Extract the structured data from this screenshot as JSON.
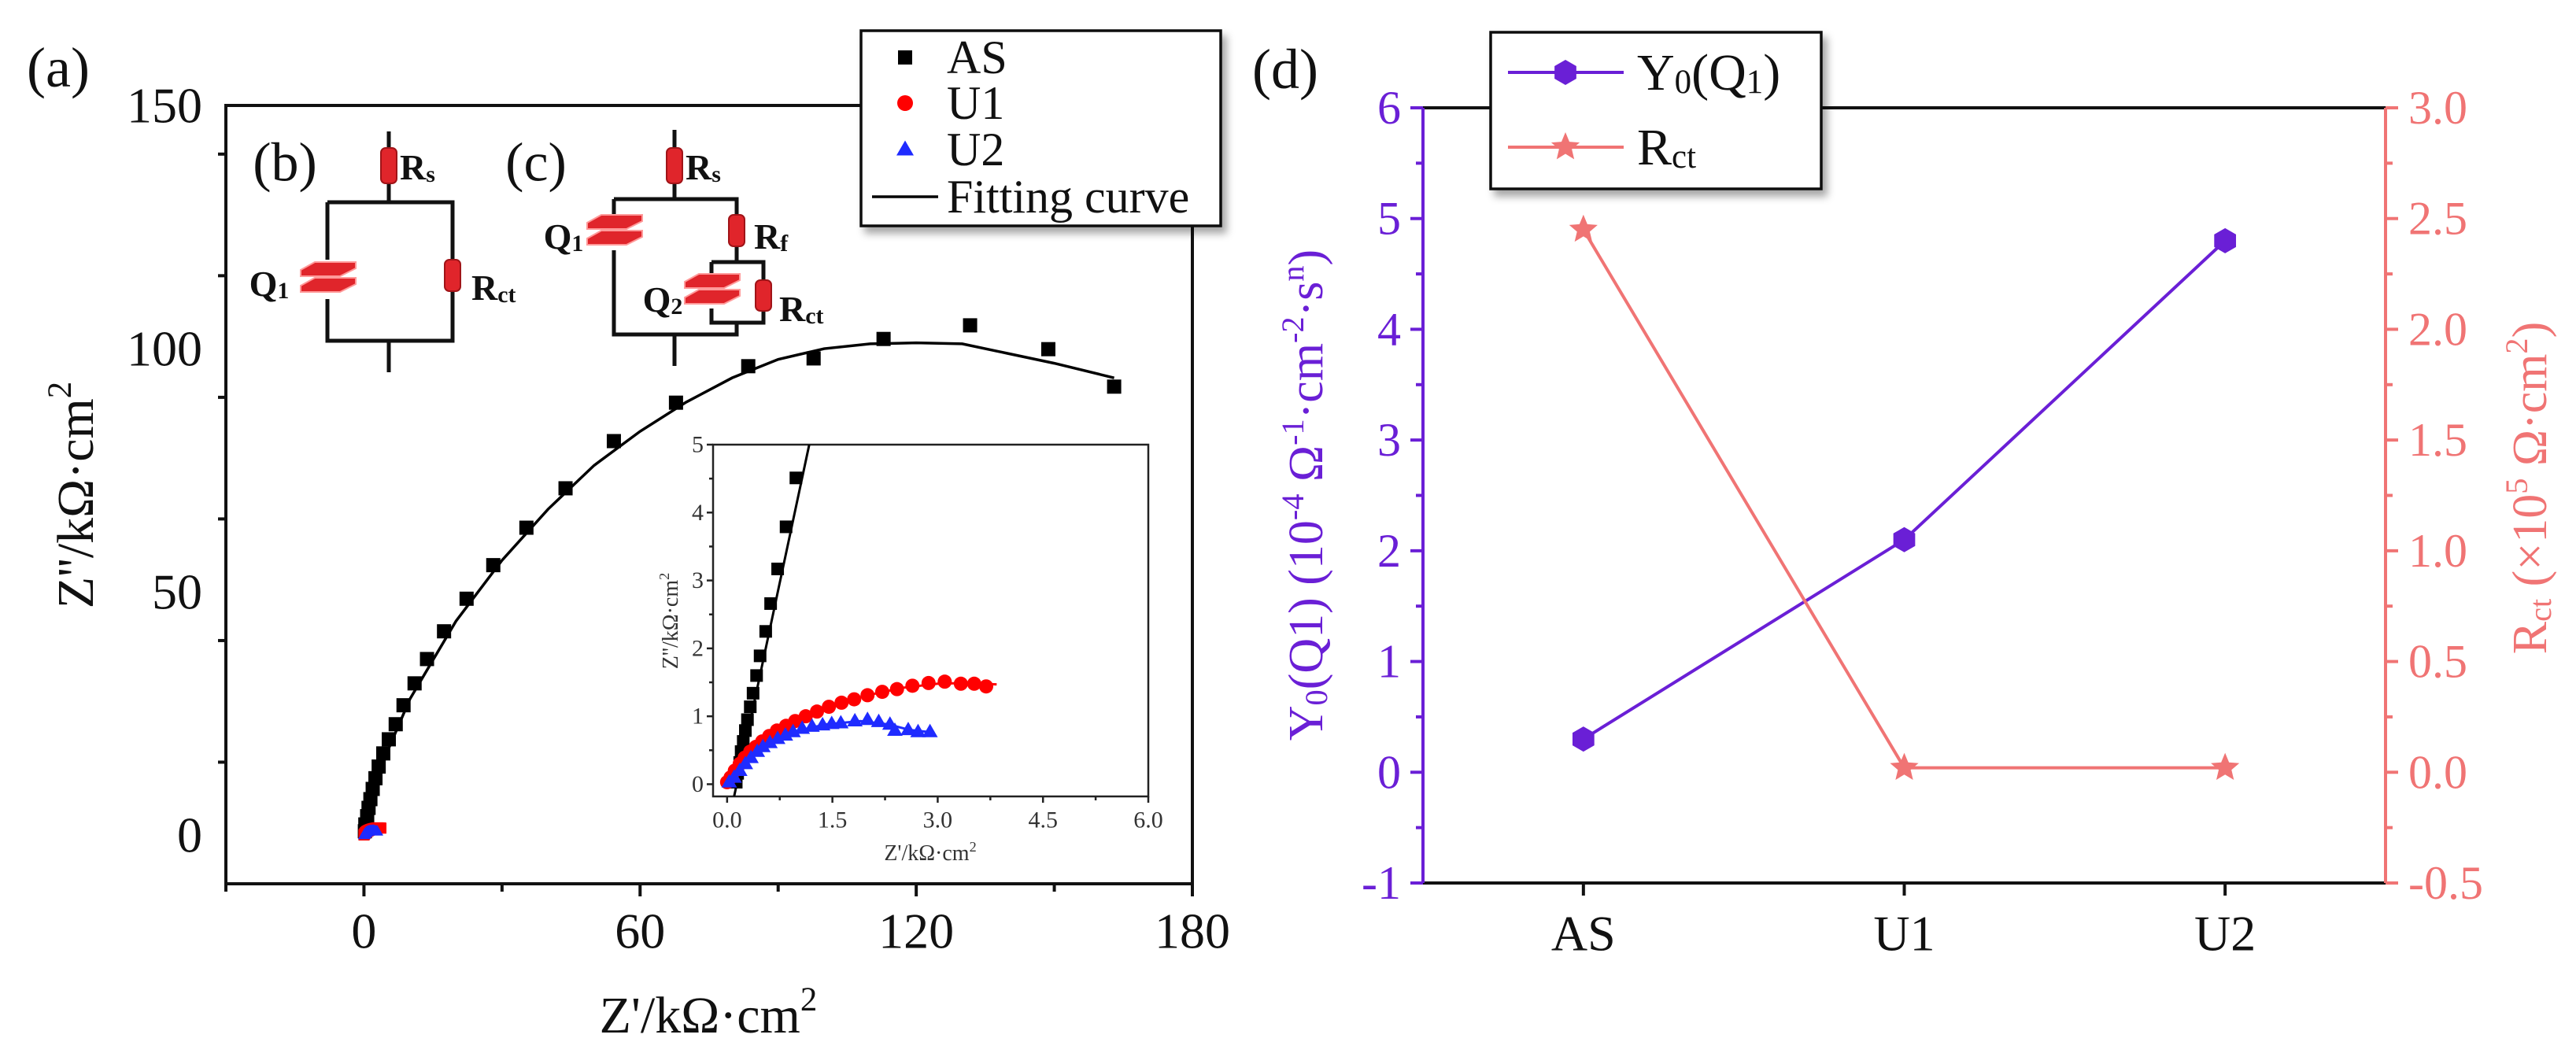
{
  "colors": {
    "as": "#000000",
    "u1": "#ff0000",
    "u2": "#1f2bff",
    "fit": "#000000",
    "y0": "#6a1fd6",
    "rct": "#f07474",
    "component": "#e0252b"
  },
  "panel_labels": {
    "a": "(a)",
    "b": "(b)",
    "c": "(c)",
    "d": "(d)"
  },
  "circuits": {
    "b": {
      "rs": [
        {
          "t": "R"
        },
        {
          "t": "s",
          "s": "sub"
        }
      ],
      "q1": [
        {
          "t": "Q"
        },
        {
          "t": "1",
          "s": "sub"
        }
      ],
      "rct": [
        {
          "t": "R"
        },
        {
          "t": "ct",
          "s": "sub"
        }
      ]
    },
    "c": {
      "rs": [
        {
          "t": "R"
        },
        {
          "t": "s",
          "s": "sub"
        }
      ],
      "q1": [
        {
          "t": "Q"
        },
        {
          "t": "1",
          "s": "sub"
        }
      ],
      "rf": [
        {
          "t": "R"
        },
        {
          "t": "f",
          "s": "sub"
        }
      ],
      "q2": [
        {
          "t": "Q"
        },
        {
          "t": "2",
          "s": "sub"
        }
      ],
      "rct": [
        {
          "t": "R"
        },
        {
          "t": "ct",
          "s": "sub"
        }
      ]
    }
  },
  "chart_data": [
    {
      "id": "nyquist-main",
      "type": "scatter",
      "title": "",
      "xlabel": [
        {
          "t": "Z'/kΩ·cm"
        },
        {
          "t": "2",
          "s": "sup"
        }
      ],
      "ylabel": [
        {
          "t": "Z''/kΩ·cm"
        },
        {
          "t": "2",
          "s": "sup"
        }
      ],
      "xlim": [
        -30,
        180
      ],
      "ylim": [
        -10,
        150
      ],
      "xticks": [
        "0",
        "60",
        "120",
        "180"
      ],
      "xtick_values": [
        0,
        60,
        120,
        180
      ],
      "yticks": [
        "0",
        "50",
        "100",
        "150"
      ],
      "ytick_values": [
        0,
        50,
        100,
        150
      ],
      "grid": false,
      "legend": {
        "placement": "top-right",
        "entries": [
          "AS",
          "U1",
          "U2",
          "Fitting curve"
        ]
      },
      "series": [
        {
          "name": "AS",
          "marker": "square",
          "points": [
            [
              163,
              92.2
            ],
            [
              148.7,
              99.9
            ],
            [
              131.7,
              104.8
            ],
            [
              112.9,
              102
            ],
            [
              97.7,
              98
            ],
            [
              83.5,
              96.4
            ],
            [
              67.8,
              88.9
            ],
            [
              54.3,
              81
            ],
            [
              43.8,
              71.3
            ],
            [
              35.3,
              63.2
            ],
            [
              28.1,
              55.5
            ],
            [
              22.3,
              48.6
            ],
            [
              17.4,
              41.9
            ],
            [
              13.7,
              36.2
            ],
            [
              11,
              31.2
            ],
            [
              8.6,
              26.7
            ],
            [
              6.9,
              22.8
            ],
            [
              5.4,
              19.7
            ],
            [
              4.2,
              16.8
            ],
            [
              3.2,
              14.1
            ],
            [
              2.5,
              11.7
            ],
            [
              1.9,
              9.5
            ],
            [
              1.4,
              7.4
            ],
            [
              1.0,
              5.6
            ],
            [
              0.7,
              3.9
            ],
            [
              0.3,
              2.2
            ],
            [
              0.2,
              0.8
            ]
          ]
        },
        {
          "name": "U1",
          "marker": "circle",
          "points": "same as inset"
        },
        {
          "name": "U2",
          "marker": "triangle",
          "points": "same as inset"
        }
      ],
      "fit": {
        "name": "Fitting curve",
        "points": [
          [
            0,
            0
          ],
          [
            1,
            5
          ],
          [
            2.5,
            10
          ],
          [
            5,
            17
          ],
          [
            10,
            28
          ],
          [
            15,
            36
          ],
          [
            20,
            44
          ],
          [
            30,
            56.5
          ],
          [
            40,
            67
          ],
          [
            50,
            76
          ],
          [
            60,
            83
          ],
          [
            70,
            89
          ],
          [
            80,
            94
          ],
          [
            90,
            97.8
          ],
          [
            100,
            100
          ],
          [
            110,
            101
          ],
          [
            120,
            101.2
          ],
          [
            130,
            101
          ],
          [
            140,
            99
          ],
          [
            150,
            97
          ],
          [
            163,
            94
          ]
        ]
      }
    },
    {
      "id": "nyquist-inset",
      "type": "scatter",
      "xlabel": [
        {
          "t": "Z'/kΩ·cm"
        },
        {
          "t": "2",
          "s": "sup"
        }
      ],
      "ylabel": [
        {
          "t": "Z''/kΩ·cm"
        },
        {
          "t": "2",
          "s": "sup"
        }
      ],
      "xlim": [
        -0.2,
        6.0
      ],
      "ylim": [
        -0.18,
        5
      ],
      "xticks": [
        "0.0",
        "1.5",
        "3.0",
        "4.5",
        "6.0"
      ],
      "xtick_values": [
        0,
        1.5,
        3,
        4.5,
        6
      ],
      "yticks": [
        "0",
        "1",
        "2",
        "3",
        "4",
        "5"
      ],
      "ytick_values": [
        0,
        1,
        2,
        3,
        4,
        5
      ],
      "series": [
        {
          "name": "AS",
          "marker": "square",
          "points": [
            [
              0.98,
              4.51
            ],
            [
              0.84,
              3.79
            ],
            [
              0.72,
              3.17
            ],
            [
              0.62,
              2.66
            ],
            [
              0.55,
              2.25
            ],
            [
              0.47,
              1.89
            ],
            [
              0.42,
              1.6
            ],
            [
              0.37,
              1.34
            ],
            [
              0.33,
              1.14
            ],
            [
              0.29,
              0.95
            ],
            [
              0.26,
              0.79
            ],
            [
              0.23,
              0.63
            ],
            [
              0.2,
              0.48
            ],
            [
              0.18,
              0.32
            ],
            [
              0.15,
              0.16
            ],
            [
              0.13,
              0.03
            ]
          ],
          "fit": [
            [
              0.1,
              -0.18
            ],
            [
              1.17,
              5.0
            ]
          ]
        },
        {
          "name": "U1",
          "marker": "circle",
          "points": [
            [
              3.69,
              1.44
            ],
            [
              3.52,
              1.48
            ],
            [
              3.33,
              1.48
            ],
            [
              3.1,
              1.51
            ],
            [
              2.87,
              1.49
            ],
            [
              2.64,
              1.45
            ],
            [
              2.42,
              1.4
            ],
            [
              2.21,
              1.36
            ],
            [
              2.0,
              1.31
            ],
            [
              1.81,
              1.25
            ],
            [
              1.63,
              1.2
            ],
            [
              1.45,
              1.14
            ],
            [
              1.28,
              1.07
            ],
            [
              1.12,
              1.0
            ],
            [
              0.97,
              0.93
            ],
            [
              0.84,
              0.86
            ],
            [
              0.71,
              0.79
            ],
            [
              0.6,
              0.71
            ],
            [
              0.5,
              0.63
            ],
            [
              0.41,
              0.55
            ],
            [
              0.33,
              0.48
            ],
            [
              0.25,
              0.39
            ],
            [
              0.18,
              0.3
            ],
            [
              0.11,
              0.2
            ],
            [
              0.05,
              0.1
            ],
            [
              0.0,
              0.03
            ]
          ],
          "fit": [
            [
              -0.02,
              0
            ],
            [
              0.1,
              0.2
            ],
            [
              0.3,
              0.45
            ],
            [
              0.6,
              0.71
            ],
            [
              1.0,
              0.95
            ],
            [
              1.5,
              1.16
            ],
            [
              2.0,
              1.31
            ],
            [
              2.5,
              1.42
            ],
            [
              3.0,
              1.48
            ],
            [
              3.4,
              1.49
            ],
            [
              3.84,
              1.47
            ]
          ]
        },
        {
          "name": "U2",
          "marker": "triangle",
          "points": [
            [
              2.89,
              0.77
            ],
            [
              2.72,
              0.77
            ],
            [
              2.58,
              0.8
            ],
            [
              2.39,
              0.79
            ],
            [
              2.32,
              0.88
            ],
            [
              2.16,
              0.92
            ],
            [
              2.0,
              0.95
            ],
            [
              1.82,
              0.93
            ],
            [
              1.62,
              0.9
            ],
            [
              1.49,
              0.89
            ],
            [
              1.36,
              0.87
            ],
            [
              1.21,
              0.85
            ],
            [
              1.07,
              0.82
            ],
            [
              0.94,
              0.77
            ],
            [
              0.83,
              0.72
            ],
            [
              0.72,
              0.67
            ],
            [
              0.61,
              0.61
            ],
            [
              0.51,
              0.55
            ],
            [
              0.43,
              0.48
            ],
            [
              0.34,
              0.39
            ],
            [
              0.26,
              0.3
            ],
            [
              0.18,
              0.2
            ],
            [
              0.1,
              0.1
            ],
            [
              0.03,
              0.03
            ]
          ],
          "fit": [
            [
              0,
              0
            ],
            [
              0.2,
              0.22
            ],
            [
              0.5,
              0.54
            ],
            [
              0.9,
              0.76
            ],
            [
              1.4,
              0.88
            ],
            [
              1.9,
              0.93
            ],
            [
              2.3,
              0.88
            ],
            [
              2.6,
              0.8
            ],
            [
              2.95,
              0.76
            ]
          ]
        }
      ]
    },
    {
      "id": "parameters",
      "type": "line",
      "categories": [
        "AS",
        "U1",
        "U2"
      ],
      "ylabel_left": [
        {
          "t": "Y"
        },
        {
          "t": "0",
          "s": "sub"
        },
        {
          "t": "(Q1) (10"
        },
        {
          "t": "-4",
          "s": "sup"
        },
        {
          "t": " Ω"
        },
        {
          "t": "-1",
          "s": "sup"
        },
        {
          "t": "·cm"
        },
        {
          "t": "-2",
          "s": "sup"
        },
        {
          "t": "·s"
        },
        {
          "t": "n",
          "s": "sup"
        },
        {
          "t": ")"
        }
      ],
      "ylabel_right": [
        {
          "t": "R"
        },
        {
          "t": "ct",
          "s": "sub"
        },
        {
          "t": " (×10"
        },
        {
          "t": "5",
          "s": "sup"
        },
        {
          "t": " Ω·cm"
        },
        {
          "t": "2",
          "s": "sup"
        },
        {
          "t": ")"
        }
      ],
      "ylim_left": [
        -1,
        6
      ],
      "ylim_right": [
        -0.5,
        3.0
      ],
      "yticks_left": [
        "-1",
        "0",
        "1",
        "2",
        "3",
        "4",
        "5",
        "6"
      ],
      "ytick_values_left": [
        -1,
        0,
        1,
        2,
        3,
        4,
        5,
        6
      ],
      "yticks_right": [
        "-0.5",
        "0.0",
        "0.5",
        "1.0",
        "1.5",
        "2.0",
        "2.5",
        "3.0"
      ],
      "ytick_values_right": [
        -0.5,
        0,
        0.5,
        1,
        1.5,
        2,
        2.5,
        3
      ],
      "legend": {
        "placement": "top-left"
      },
      "series": [
        {
          "name": "Y0(Q1)",
          "label": [
            {
              "t": "Y"
            },
            {
              "t": "0",
              "s": "sub"
            },
            {
              "t": "(Q"
            },
            {
              "t": "1",
              "s": "sub"
            },
            {
              "t": ")"
            }
          ],
          "axis": "left",
          "marker": "hexagon",
          "values": [
            0.3,
            2.1,
            4.8
          ]
        },
        {
          "name": "Rct",
          "label": [
            {
              "t": "R"
            },
            {
              "t": "ct",
              "s": "sub"
            }
          ],
          "axis": "right",
          "marker": "star",
          "values": [
            2.45,
            0.02,
            0.02
          ]
        }
      ]
    }
  ]
}
